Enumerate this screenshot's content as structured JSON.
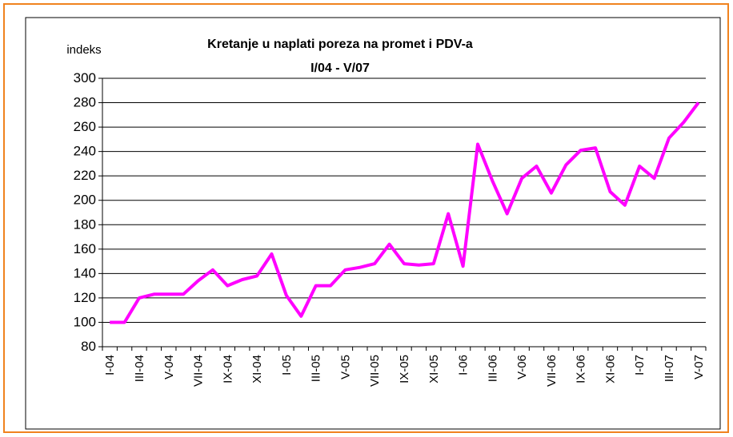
{
  "chart_data": {
    "type": "line",
    "title": "Kretanje u naplati poreza na promet i PDV-a",
    "subtitle": "I/04 - V/07",
    "y_label": "indeks",
    "categories": [
      "I-04",
      null,
      "III-04",
      null,
      "V-04",
      null,
      "VII-04",
      null,
      "IX-04",
      null,
      "XI-04",
      null,
      "I-05",
      null,
      "III-05",
      null,
      "V-05",
      null,
      "VII-05",
      null,
      "IX-05",
      null,
      "XI-05",
      null,
      "I-06",
      null,
      "III-06",
      null,
      "V-06",
      null,
      "VII-06",
      null,
      "IX-06",
      null,
      "XI-06",
      null,
      "I-07",
      null,
      "III-07",
      null,
      "V-07"
    ],
    "series": [
      {
        "color": "#ff00ff",
        "values": [
          100,
          100,
          120,
          123,
          123,
          123,
          134,
          143,
          130,
          135,
          138,
          156,
          122,
          105,
          130,
          130,
          143,
          145,
          148,
          164,
          148,
          147,
          148,
          189,
          146,
          246,
          216,
          189,
          218,
          228,
          206,
          229,
          241,
          243,
          207,
          196,
          228,
          218,
          251,
          264,
          280
        ]
      }
    ],
    "ylim": [
      80,
      300
    ],
    "yticks": [
      80,
      100,
      120,
      140,
      160,
      180,
      200,
      220,
      240,
      260,
      280,
      300
    ],
    "grid": true
  }
}
